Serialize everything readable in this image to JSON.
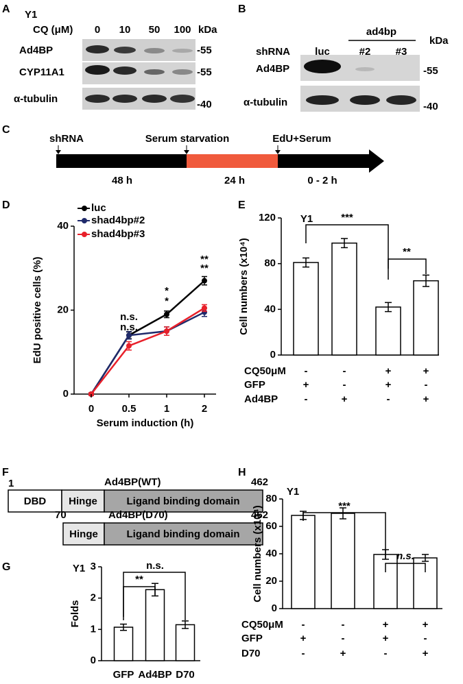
{
  "blot_a": {
    "label": "A",
    "cell": "Y1",
    "treatment": "CQ (μM)",
    "doses": [
      "0",
      "10",
      "50",
      "100"
    ],
    "unit": "kDa",
    "rows": [
      {
        "name": "Ad4BP",
        "marker": "-55"
      },
      {
        "name": "CYP11A1",
        "marker": "-55"
      },
      {
        "name": "α-tubulin",
        "marker": "-40"
      }
    ]
  },
  "blot_b": {
    "label": "B",
    "group": "ad4bp",
    "row_label": "shRNA",
    "lanes": [
      "luc",
      "#2",
      "#3"
    ],
    "unit": "kDa",
    "rows": [
      {
        "name": "Ad4BP",
        "marker": "-55"
      },
      {
        "name": "α-tubulin",
        "marker": "-40"
      }
    ]
  },
  "timeline": {
    "label": "C",
    "events": [
      "shRNA",
      "Serum starvation",
      "EdU+Serum"
    ],
    "durations": [
      "48 h",
      "24 h",
      "0 - 2 h"
    ]
  },
  "domains": {
    "label": "F",
    "wt": {
      "name": "Ad4BP(WT)",
      "start": 1,
      "end": 462,
      "parts": [
        "DBD",
        "Hinge",
        "Ligand binding domain"
      ]
    },
    "d70": {
      "name": "Ad4BP(D70)",
      "start": 70,
      "end": 462,
      "parts": [
        "Hinge",
        "Ligand binding domain"
      ]
    }
  },
  "chart_data": [
    {
      "type": "line",
      "label": "D",
      "y_label": "EdU positive cells (%)",
      "x_label": "Serum induction (h)",
      "categories": [
        "0",
        "0.5",
        "1",
        "2"
      ],
      "ylim": [
        0,
        40
      ],
      "yticks": [
        0,
        20,
        40
      ],
      "series": [
        {
          "name": "luc",
          "color": "#000000",
          "values": [
            0,
            14,
            19,
            27
          ],
          "errors": [
            0.3,
            0.8,
            0.8,
            1
          ]
        },
        {
          "name": "shad4bp#2",
          "color": "#1f2a6b",
          "values": [
            0,
            14,
            15,
            19.5
          ],
          "errors": [
            0.3,
            0.9,
            1,
            1
          ]
        },
        {
          "name": "shad4bp#3",
          "color": "#e8202a",
          "values": [
            0,
            11.5,
            15,
            20.5
          ],
          "errors": [
            0.3,
            1,
            1,
            0.8
          ]
        }
      ],
      "annotations": [
        {
          "text": "n.s.",
          "color": "#1f3fbf"
        },
        {
          "text": "n.s.",
          "color": "#e8202a"
        },
        {
          "text": "*",
          "color": "#1f3fbf"
        },
        {
          "text": "*",
          "color": "#e8202a"
        },
        {
          "text": "**",
          "color": "#1f3fbf"
        },
        {
          "text": "**",
          "color": "#e8202a"
        }
      ]
    },
    {
      "type": "bar",
      "label": "E",
      "title": "Y1",
      "y_label": "Cell numbers (x10⁴)",
      "ylim": [
        0,
        120
      ],
      "yticks": [
        0,
        40,
        80,
        120
      ],
      "values": [
        81,
        98,
        42,
        65
      ],
      "errors": [
        4,
        4,
        4,
        5
      ],
      "color": "#ffffff",
      "conditions": [
        {
          "name": "CQ50μM",
          "values": [
            "-",
            "-",
            "+",
            "+"
          ]
        },
        {
          "name": "GFP",
          "values": [
            "+",
            "-",
            "+",
            "-"
          ]
        },
        {
          "name": "Ad4BP",
          "values": [
            "-",
            "+",
            "-",
            "+"
          ]
        }
      ],
      "brackets": [
        "***",
        "**"
      ]
    },
    {
      "type": "bar",
      "label": "G",
      "title": "Y1",
      "y_label": "Folds",
      "categories": [
        "GFP",
        "Ad4BP",
        "D70"
      ],
      "ylim": [
        0,
        3
      ],
      "yticks": [
        0,
        1,
        2,
        3
      ],
      "values": [
        1.07,
        2.27,
        1.15
      ],
      "errors": [
        0.1,
        0.2,
        0.12
      ],
      "color": "#ffffff",
      "brackets": [
        "**",
        "n.s."
      ]
    },
    {
      "type": "bar",
      "label": "H",
      "title": "Y1",
      "y_label": "Cell numbers (x10⁴)",
      "ylim": [
        0,
        80
      ],
      "yticks": [
        0,
        20,
        40,
        60,
        80
      ],
      "values": [
        68,
        69.5,
        39.5,
        37
      ],
      "errors": [
        3,
        4,
        3.5,
        2.5
      ],
      "color": "#ffffff",
      "conditions": [
        {
          "name": "CQ50μM",
          "values": [
            "-",
            "-",
            "+",
            "+"
          ]
        },
        {
          "name": "GFP",
          "values": [
            "+",
            "-",
            "+",
            "-"
          ]
        },
        {
          "name": "D70",
          "values": [
            "-",
            "+",
            "-",
            "+"
          ]
        }
      ],
      "brackets": [
        "***",
        "n.s."
      ]
    }
  ]
}
